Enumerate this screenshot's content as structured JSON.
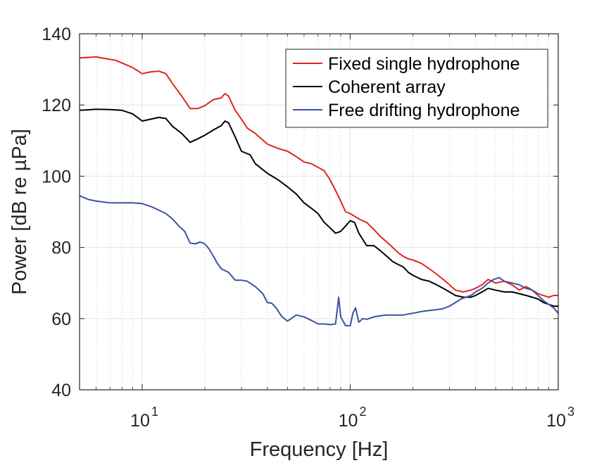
{
  "chart_data": {
    "type": "line",
    "xlabel": "Frequency [Hz]",
    "ylabel": "Power [dB re µPa]",
    "xscale": "log",
    "xlim": [
      5,
      1000
    ],
    "ylim": [
      40,
      140
    ],
    "yticks": [
      40,
      60,
      80,
      100,
      120,
      140
    ],
    "xtick_labels": [
      {
        "value": 10,
        "base": "10",
        "exp": "1"
      },
      {
        "value": 100,
        "base": "10",
        "exp": "2"
      },
      {
        "value": 1000,
        "base": "10",
        "exp": "3"
      }
    ],
    "grid": true,
    "legend_placement": "top-right",
    "series": [
      {
        "name": "Fixed single hydrophone",
        "color": "#e0261d",
        "points": [
          [
            5,
            133.2
          ],
          [
            6,
            133.5
          ],
          [
            7.5,
            132.5
          ],
          [
            9,
            130.5
          ],
          [
            10,
            128.8
          ],
          [
            11,
            129.3
          ],
          [
            12,
            129.5
          ],
          [
            13,
            128.8
          ],
          [
            14,
            126
          ],
          [
            15.5,
            122.5
          ],
          [
            17,
            119
          ],
          [
            18.5,
            119
          ],
          [
            20,
            119.8
          ],
          [
            22,
            121.5
          ],
          [
            24,
            122
          ],
          [
            25,
            123.2
          ],
          [
            26,
            122.5
          ],
          [
            28,
            118.5
          ],
          [
            30,
            116
          ],
          [
            32,
            113.5
          ],
          [
            35,
            112
          ],
          [
            40,
            109
          ],
          [
            45,
            107.8
          ],
          [
            50,
            107
          ],
          [
            55,
            105.5
          ],
          [
            60,
            104
          ],
          [
            65,
            103.5
          ],
          [
            70,
            102.5
          ],
          [
            75,
            101.5
          ],
          [
            80,
            99
          ],
          [
            85,
            96
          ],
          [
            90,
            93
          ],
          [
            95,
            90
          ],
          [
            100,
            89.5
          ],
          [
            110,
            88
          ],
          [
            120,
            87
          ],
          [
            130,
            85
          ],
          [
            140,
            83
          ],
          [
            150,
            81.5
          ],
          [
            160,
            80
          ],
          [
            170,
            78.5
          ],
          [
            180,
            77.5
          ],
          [
            190,
            76.8
          ],
          [
            200,
            76.5
          ],
          [
            220,
            75.5
          ],
          [
            240,
            74
          ],
          [
            260,
            72.5
          ],
          [
            280,
            71
          ],
          [
            300,
            69.5
          ],
          [
            320,
            68
          ],
          [
            350,
            67.5
          ],
          [
            380,
            68
          ],
          [
            400,
            68.5
          ],
          [
            430,
            69.5
          ],
          [
            460,
            71
          ],
          [
            500,
            70
          ],
          [
            550,
            70.5
          ],
          [
            600,
            69.5
          ],
          [
            650,
            68
          ],
          [
            700,
            69
          ],
          [
            750,
            68
          ],
          [
            800,
            67
          ],
          [
            850,
            66.5
          ],
          [
            900,
            66
          ],
          [
            950,
            66.5
          ],
          [
            1000,
            66.5
          ]
        ]
      },
      {
        "name": "Coherent array",
        "color": "#000000",
        "points": [
          [
            5,
            118.5
          ],
          [
            6,
            118.8
          ],
          [
            7,
            118.7
          ],
          [
            8,
            118.5
          ],
          [
            9,
            117.5
          ],
          [
            10,
            115.5
          ],
          [
            11,
            116
          ],
          [
            12,
            116.5
          ],
          [
            13,
            116.2
          ],
          [
            14,
            114
          ],
          [
            15.5,
            112
          ],
          [
            17,
            109.5
          ],
          [
            18.5,
            110.5
          ],
          [
            20,
            111.5
          ],
          [
            22,
            113
          ],
          [
            24,
            114.2
          ],
          [
            25,
            115.5
          ],
          [
            26,
            115
          ],
          [
            28,
            111
          ],
          [
            30,
            107
          ],
          [
            33,
            106
          ],
          [
            35,
            103.5
          ],
          [
            40,
            100.8
          ],
          [
            45,
            99
          ],
          [
            50,
            97
          ],
          [
            55,
            95
          ],
          [
            60,
            92.5
          ],
          [
            65,
            91
          ],
          [
            70,
            89.5
          ],
          [
            75,
            87
          ],
          [
            80,
            85.5
          ],
          [
            85,
            84
          ],
          [
            90,
            84.5
          ],
          [
            95,
            86
          ],
          [
            100,
            87.5
          ],
          [
            105,
            87
          ],
          [
            110,
            84
          ],
          [
            120,
            80.5
          ],
          [
            130,
            80.5
          ],
          [
            140,
            79
          ],
          [
            150,
            77.5
          ],
          [
            160,
            76
          ],
          [
            170,
            75.2
          ],
          [
            180,
            74.5
          ],
          [
            190,
            73
          ],
          [
            200,
            72.2
          ],
          [
            220,
            71
          ],
          [
            240,
            70.5
          ],
          [
            260,
            69.5
          ],
          [
            280,
            68.5
          ],
          [
            300,
            67.5
          ],
          [
            320,
            66.5
          ],
          [
            350,
            66
          ],
          [
            380,
            66
          ],
          [
            400,
            66.5
          ],
          [
            430,
            67.5
          ],
          [
            460,
            68.5
          ],
          [
            500,
            68
          ],
          [
            550,
            67.5
          ],
          [
            600,
            67.5
          ],
          [
            650,
            67
          ],
          [
            700,
            66.5
          ],
          [
            750,
            66
          ],
          [
            800,
            65.5
          ],
          [
            850,
            64.5
          ],
          [
            900,
            64
          ],
          [
            950,
            63.5
          ],
          [
            1000,
            63.5
          ]
        ]
      },
      {
        "name": "Free drifting hydrophone",
        "color": "#3d52a1",
        "points": [
          [
            5,
            94.5
          ],
          [
            5.5,
            93.5
          ],
          [
            6,
            93
          ],
          [
            7,
            92.5
          ],
          [
            8,
            92.5
          ],
          [
            9,
            92.5
          ],
          [
            10,
            92.3
          ],
          [
            11,
            91.5
          ],
          [
            12,
            90.5
          ],
          [
            13,
            89.5
          ],
          [
            14,
            88
          ],
          [
            15,
            86
          ],
          [
            16,
            84.5
          ],
          [
            17,
            81.2
          ],
          [
            18,
            81
          ],
          [
            19,
            81.5
          ],
          [
            20,
            81
          ],
          [
            21,
            79.5
          ],
          [
            22,
            77.5
          ],
          [
            23,
            75.5
          ],
          [
            24,
            74
          ],
          [
            26,
            73
          ],
          [
            28,
            70.8
          ],
          [
            30,
            70.8
          ],
          [
            32,
            70.5
          ],
          [
            35,
            69
          ],
          [
            38,
            67
          ],
          [
            40,
            64.5
          ],
          [
            42,
            64.3
          ],
          [
            44,
            63
          ],
          [
            47,
            60.5
          ],
          [
            50,
            59.3
          ],
          [
            55,
            61
          ],
          [
            60,
            60.5
          ],
          [
            65,
            59.5
          ],
          [
            70,
            58.5
          ],
          [
            75,
            58.5
          ],
          [
            80,
            58.3
          ],
          [
            85,
            58.5
          ],
          [
            88,
            66
          ],
          [
            90,
            60.5
          ],
          [
            95,
            58
          ],
          [
            100,
            58
          ],
          [
            103,
            61.5
          ],
          [
            106,
            63
          ],
          [
            110,
            59
          ],
          [
            115,
            60
          ],
          [
            120,
            59.8
          ],
          [
            130,
            60.5
          ],
          [
            140,
            60.8
          ],
          [
            150,
            61
          ],
          [
            160,
            61
          ],
          [
            170,
            61
          ],
          [
            180,
            61
          ],
          [
            190,
            61.3
          ],
          [
            200,
            61.5
          ],
          [
            220,
            62
          ],
          [
            240,
            62.3
          ],
          [
            260,
            62.5
          ],
          [
            280,
            62.8
          ],
          [
            300,
            63.5
          ],
          [
            320,
            64.5
          ],
          [
            340,
            65.5
          ],
          [
            360,
            66
          ],
          [
            380,
            66.5
          ],
          [
            400,
            67.5
          ],
          [
            430,
            68.5
          ],
          [
            460,
            70
          ],
          [
            490,
            71
          ],
          [
            520,
            71.5
          ],
          [
            550,
            70.5
          ],
          [
            600,
            70
          ],
          [
            650,
            69.5
          ],
          [
            700,
            68.5
          ],
          [
            750,
            68
          ],
          [
            800,
            66.5
          ],
          [
            850,
            65
          ],
          [
            900,
            64
          ],
          [
            950,
            63
          ],
          [
            1000,
            61.5
          ]
        ]
      }
    ]
  }
}
